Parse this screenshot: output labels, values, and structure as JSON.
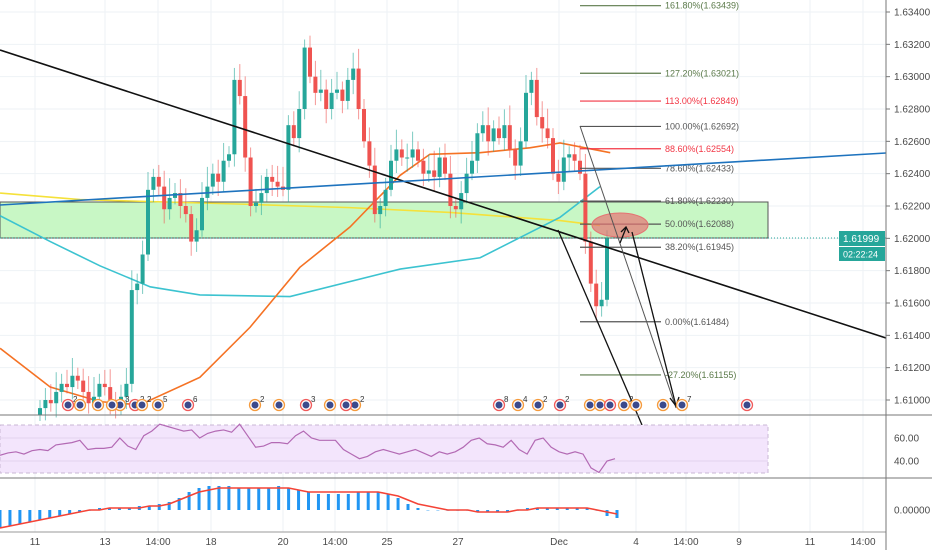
{
  "chart_data": {
    "type": "candlestick",
    "title": "",
    "price_axis": {
      "ticks": [
        "1.63400",
        "1.63200",
        "1.63000",
        "1.62800",
        "1.62600",
        "1.62400",
        "1.62200",
        "1.62000",
        "1.61800",
        "1.61600",
        "1.61400",
        "1.61200",
        "1.61000"
      ],
      "ylim": [
        1.6088,
        1.6348
      ]
    },
    "current_price": "1.61999",
    "countdown": "02:22:24",
    "time_axis": [
      "11",
      "13",
      "14:00",
      "18",
      "20",
      "14:00",
      "25",
      "27",
      "Dec",
      "4",
      "14:00",
      "9",
      "11",
      "14:00"
    ],
    "closes": [
      1.6095,
      1.61,
      1.6098,
      1.6105,
      1.611,
      1.6108,
      1.6115,
      1.6112,
      1.6105,
      1.6098,
      1.6102,
      1.611,
      1.6108,
      1.61,
      1.6095,
      1.6102,
      1.611,
      1.6168,
      1.6172,
      1.619,
      1.623,
      1.6238,
      1.6232,
      1.6218,
      1.6225,
      1.6228,
      1.622,
      1.6215,
      1.6198,
      1.6205,
      1.6225,
      1.6232,
      1.624,
      1.6235,
      1.6248,
      1.6252,
      1.6298,
      1.6288,
      1.625,
      1.622,
      1.6222,
      1.6228,
      1.6238,
      1.6235,
      1.6232,
      1.623,
      1.627,
      1.6262,
      1.628,
      1.6318,
      1.63,
      1.629,
      1.6292,
      1.628,
      1.629,
      1.6292,
      1.6285,
      1.6298,
      1.6305,
      1.628,
      1.626,
      1.6245,
      1.6215,
      1.622,
      1.623,
      1.6248,
      1.6255,
      1.625,
      1.625,
      1.6255,
      1.6248,
      1.624,
      1.6242,
      1.6238,
      1.625,
      1.624,
      1.622,
      1.6218,
      1.6228,
      1.624,
      1.6248,
      1.6265,
      1.627,
      1.626,
      1.6268,
      1.6262,
      1.627,
      1.6255,
      1.6245,
      1.626,
      1.629,
      1.6298,
      1.6275,
      1.6268,
      1.6262,
      1.624,
      1.6235,
      1.625,
      1.6252,
      1.6248,
      1.624,
      1.6198,
      1.6172,
      1.6158,
      1.6162,
      1.62
    ],
    "moving_averages": [
      {
        "name": "MA yellow",
        "color": "#f5e13a",
        "points": [
          [
            -7.4,
            1.6228
          ],
          [
            7.4,
            1.6224
          ],
          [
            38.9,
            1.6221
          ],
          [
            57.4,
            1.6219
          ],
          [
            75.9,
            1.6216
          ],
          [
            96.3,
            1.6211
          ],
          [
            103.7,
            1.6208
          ]
        ]
      },
      {
        "name": "MA cyan",
        "color": "#3cc3d0",
        "points": [
          [
            -7.4,
            1.6214
          ],
          [
            1.9,
            1.6198
          ],
          [
            11.1,
            1.6183
          ],
          [
            20.4,
            1.617
          ],
          [
            29.6,
            1.6165
          ],
          [
            46.3,
            1.6164
          ],
          [
            66.7,
            1.6181
          ],
          [
            81.5,
            1.6188
          ],
          [
            96.3,
            1.6213
          ],
          [
            103.7,
            1.6232
          ]
        ]
      },
      {
        "name": "MA orange",
        "color": "#f57224",
        "points": [
          [
            -7.4,
            1.6132
          ],
          [
            1.9,
            1.6108
          ],
          [
            11.1,
            1.6099
          ],
          [
            18.5,
            1.6097
          ],
          [
            29.6,
            1.6114
          ],
          [
            38.9,
            1.6145
          ],
          [
            48.1,
            1.6182
          ],
          [
            57.4,
            1.6207
          ],
          [
            66.7,
            1.6239
          ],
          [
            72.2,
            1.6252
          ],
          [
            81.5,
            1.6253
          ],
          [
            90.7,
            1.6256
          ],
          [
            96.3,
            1.6259
          ],
          [
            105.6,
            1.6253
          ]
        ]
      }
    ],
    "fibonacci": [
      {
        "label": "161.80%(1.63439)",
        "price": 1.63439,
        "color": "#5b7a4a"
      },
      {
        "label": "127.20%(1.63021)",
        "price": 1.63021,
        "color": "#5b7a4a"
      },
      {
        "label": "113.00%(1.62849)",
        "price": 1.62849,
        "color": "#f23645"
      },
      {
        "label": "100.00%(1.62692)",
        "price": 1.62692,
        "color": "#555555"
      },
      {
        "label": "88.60%(1.62554)",
        "price": 1.62554,
        "color": "#f23645"
      },
      {
        "label": "78.60%(1.62433)",
        "price": 1.62433,
        "color": "#555555"
      },
      {
        "label": "61.80%(1.62230)",
        "price": 1.6223,
        "color": "#555555"
      },
      {
        "label": "50.00%(1.62088)",
        "price": 1.62088,
        "color": "#555555"
      },
      {
        "label": "38.20%(1.61945)",
        "price": 1.61945,
        "color": "#555555"
      },
      {
        "label": "0.00%(1.61484)",
        "price": 1.61484,
        "color": "#555555"
      },
      {
        "label": "-27.20%(1.61155)",
        "price": 1.61155,
        "color": "#5b7a4a"
      }
    ],
    "rsi": {
      "ticks": [
        "60.00",
        "40.00"
      ],
      "values": [
        45,
        47,
        48,
        46,
        49,
        50,
        49,
        54,
        55,
        56,
        58,
        50,
        51,
        51,
        52,
        60,
        53,
        50,
        62,
        66,
        72,
        70,
        68,
        66,
        67,
        60,
        64,
        66,
        67,
        65,
        72,
        62,
        52,
        53,
        56,
        56,
        55,
        62,
        66,
        60,
        58,
        58,
        58,
        50,
        46,
        42,
        44,
        48,
        50,
        48,
        46,
        48,
        50,
        47,
        44,
        48,
        46,
        48,
        52,
        58,
        60,
        55,
        54,
        52,
        58,
        50,
        46,
        58,
        60,
        52,
        48,
        46,
        48,
        46,
        34,
        30,
        40,
        42
      ]
    },
    "macd": {
      "ticks": [
        "0.00000"
      ],
      "histogram": [
        -9,
        -8,
        -7,
        -6,
        -5,
        -4,
        -3,
        -2,
        -1,
        0,
        1,
        1,
        1,
        1,
        2,
        2,
        3,
        4,
        6,
        9,
        11,
        12,
        12,
        12,
        11,
        11,
        11,
        11,
        12,
        11,
        10,
        9,
        8,
        8,
        8,
        8,
        9,
        9,
        9,
        8,
        6,
        3,
        1,
        0,
        0,
        0,
        0,
        0,
        -1,
        -1,
        -1,
        -1,
        0,
        1,
        1,
        1,
        1,
        1,
        1,
        1,
        0,
        -3,
        -4
      ],
      "signal": [
        -9,
        -8,
        -7,
        -6,
        -5,
        -4,
        -3,
        -2,
        -1,
        0,
        0,
        1,
        1,
        1,
        1,
        2,
        2,
        3,
        5,
        7,
        9,
        10,
        11,
        11,
        11,
        11,
        11,
        11,
        11,
        11,
        10,
        9,
        9,
        9,
        9,
        9,
        9,
        9,
        9,
        8,
        7,
        5,
        3,
        2,
        1,
        0,
        0,
        0,
        -1,
        -1,
        -1,
        -1,
        0,
        0,
        1,
        1,
        1,
        1,
        1,
        1,
        0,
        -1,
        -2
      ]
    },
    "events": [
      "2",
      "",
      "3",
      "2",
      "2",
      "5",
      "6",
      "2",
      "",
      "3",
      "",
      "2",
      "8",
      "4",
      "2",
      "2",
      "2",
      "7"
    ],
    "colors": {
      "up": "#26a69a",
      "down": "#ef5350",
      "zone": "#c8f7c5",
      "ellipse": "#e57373",
      "rsi_band": "#f3e5fc",
      "rsi_line": "#b36ab4",
      "macd_hist": "#2196f3",
      "macd_signal": "#f44336"
    }
  }
}
